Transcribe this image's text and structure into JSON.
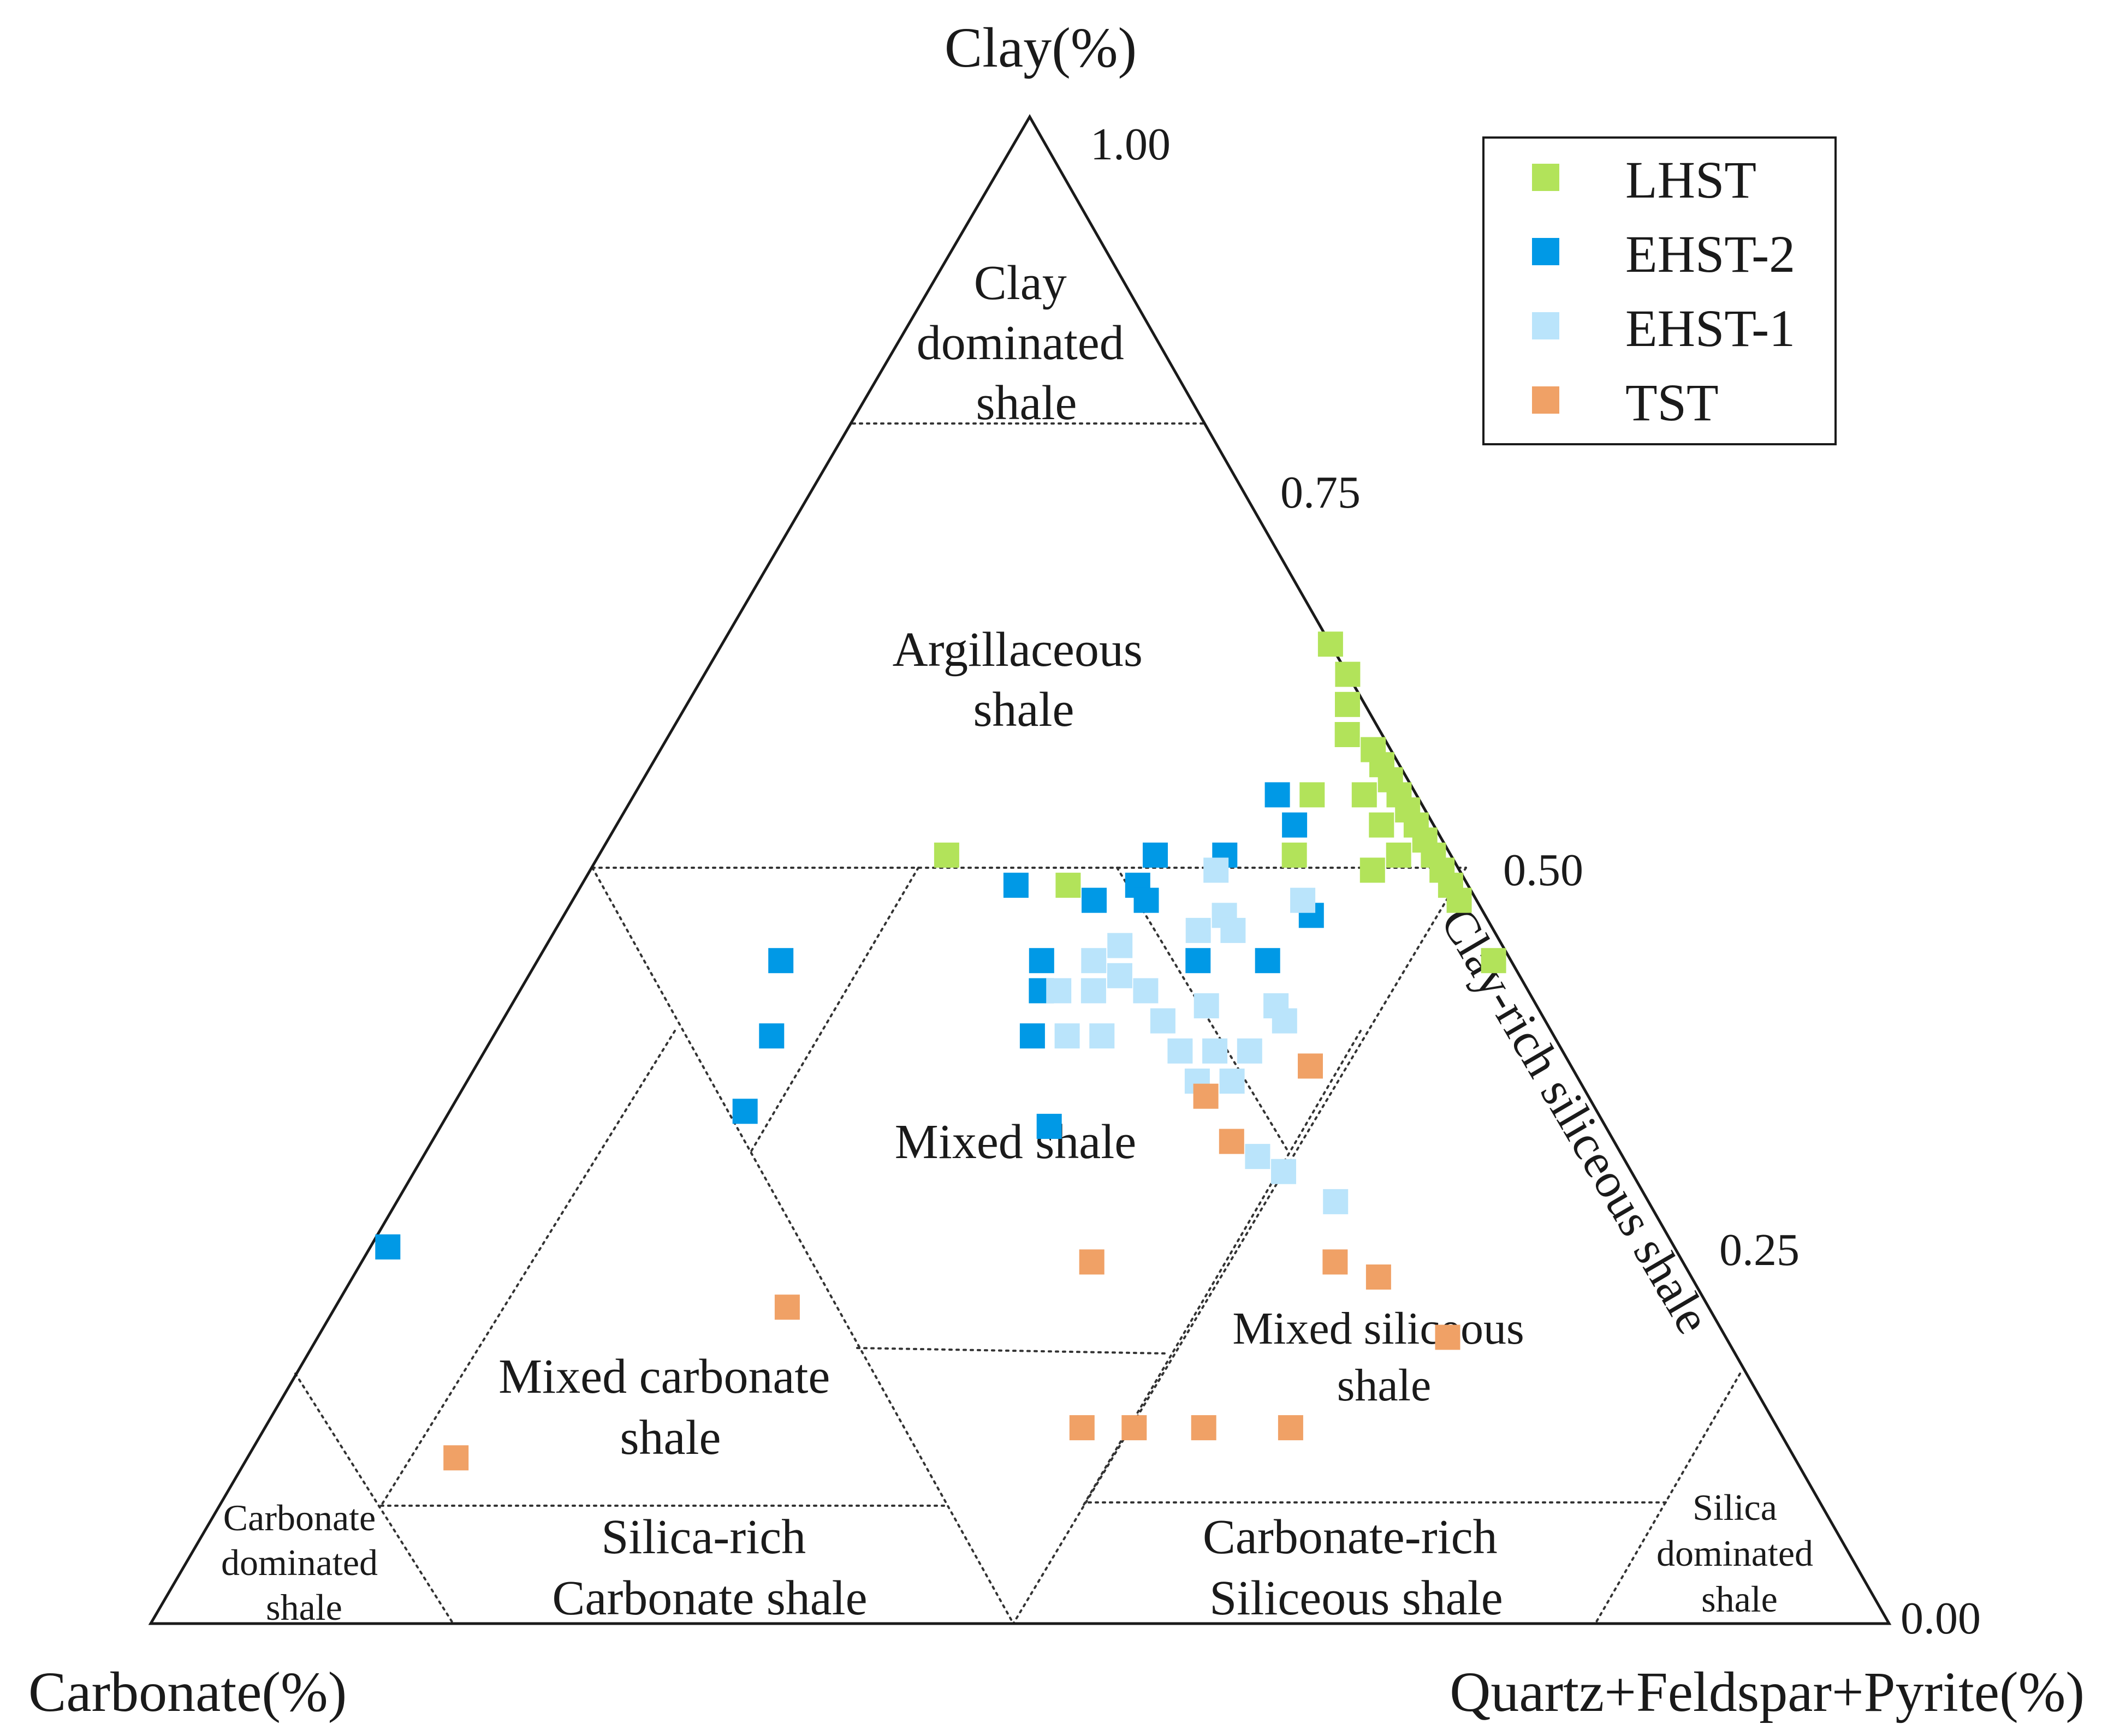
{
  "chart_data": {
    "type": "scatter",
    "subtype": "ternary",
    "axes": {
      "top": "Clay(%)",
      "left": "Carbonate(%)",
      "right": "Quartz+Feldspar+Pyrite(%)"
    },
    "ticks": [
      "1.00",
      "0.75",
      "0.50",
      "0.25",
      "0.00"
    ],
    "regions": [
      {
        "key": "clay_dom",
        "lines": [
          "Clay",
          "dominated",
          "shale"
        ]
      },
      {
        "key": "argillaceous",
        "lines": [
          "Argillaceous",
          "shale"
        ]
      },
      {
        "key": "mixed",
        "lines": [
          "Mixed shale"
        ]
      },
      {
        "key": "mixed_carbonate",
        "lines": [
          "Mixed carbonate",
          "shale"
        ]
      },
      {
        "key": "mixed_siliceous",
        "lines": [
          "Mixed siliceous",
          "shale"
        ]
      },
      {
        "key": "clay_rich_siliceous",
        "lines": [
          "Clay-rich siliceous shale"
        ]
      },
      {
        "key": "carbonate_dom",
        "lines": [
          "Carbonate",
          "dominated",
          "shale"
        ]
      },
      {
        "key": "silica_rich_carbonate",
        "lines": [
          "Silica-rich",
          "Carbonate shale"
        ]
      },
      {
        "key": "carbonate_rich_siliceous",
        "lines": [
          "Carbonate-rich",
          "Siliceous shale"
        ]
      },
      {
        "key": "silica_dom",
        "lines": [
          "Silica",
          "dominated",
          "shale"
        ]
      }
    ],
    "legend": {
      "position": "top-right"
    },
    "series": [
      {
        "name": "LHST",
        "color": "#b2e35a",
        "points": [
          {
            "clay": 0.65,
            "silica": 0.35
          },
          {
            "clay": 0.63,
            "silica": 0.37
          },
          {
            "clay": 0.61,
            "silica": 0.38
          },
          {
            "clay": 0.59,
            "silica": 0.39
          },
          {
            "clay": 0.58,
            "silica": 0.41
          },
          {
            "clay": 0.57,
            "silica": 0.42
          },
          {
            "clay": 0.56,
            "silica": 0.43
          },
          {
            "clay": 0.55,
            "silica": 0.42
          },
          {
            "clay": 0.55,
            "silica": 0.44
          },
          {
            "clay": 0.54,
            "silica": 0.45
          },
          {
            "clay": 0.53,
            "silica": 0.44
          },
          {
            "clay": 0.53,
            "silica": 0.46
          },
          {
            "clay": 0.52,
            "silica": 0.47
          },
          {
            "clay": 0.51,
            "silica": 0.46
          },
          {
            "clay": 0.51,
            "silica": 0.48
          },
          {
            "clay": 0.5,
            "silica": 0.45
          },
          {
            "clay": 0.5,
            "silica": 0.49
          },
          {
            "clay": 0.49,
            "silica": 0.5
          },
          {
            "clay": 0.48,
            "silica": 0.51
          },
          {
            "clay": 0.44,
            "silica": 0.55
          },
          {
            "clay": 0.55,
            "silica": 0.39
          },
          {
            "clay": 0.51,
            "silica": 0.4
          },
          {
            "clay": 0.51,
            "silica": 0.2
          },
          {
            "clay": 0.49,
            "silica": 0.28
          }
        ]
      },
      {
        "name": "EHST-2",
        "color": "#0099e6",
        "points": [
          {
            "clay": 0.55,
            "silica": 0.37
          },
          {
            "clay": 0.53,
            "silica": 0.39
          },
          {
            "clay": 0.51,
            "silica": 0.32
          },
          {
            "clay": 0.51,
            "silica": 0.36
          },
          {
            "clay": 0.49,
            "silica": 0.25
          },
          {
            "clay": 0.49,
            "silica": 0.32
          },
          {
            "clay": 0.48,
            "silica": 0.3
          },
          {
            "clay": 0.48,
            "silica": 0.33
          },
          {
            "clay": 0.47,
            "silica": 0.43
          },
          {
            "clay": 0.44,
            "silica": 0.14
          },
          {
            "clay": 0.44,
            "silica": 0.29
          },
          {
            "clay": 0.44,
            "silica": 0.38
          },
          {
            "clay": 0.44,
            "silica": 0.42
          },
          {
            "clay": 0.42,
            "silica": 0.3
          },
          {
            "clay": 0.39,
            "silica": 0.16
          },
          {
            "clay": 0.39,
            "silica": 0.31
          },
          {
            "clay": 0.34,
            "silica": 0.17
          },
          {
            "clay": 0.33,
            "silica": 0.35
          },
          {
            "clay": 0.25,
            "silica": 0.01
          }
        ]
      },
      {
        "name": "EHST-1",
        "color": "#bae4fb",
        "points": [
          {
            "clay": 0.5,
            "silica": 0.36
          },
          {
            "clay": 0.48,
            "silica": 0.42
          },
          {
            "clay": 0.47,
            "silica": 0.38
          },
          {
            "clay": 0.46,
            "silica": 0.37
          },
          {
            "clay": 0.46,
            "silica": 0.39
          },
          {
            "clay": 0.45,
            "silica": 0.33
          },
          {
            "clay": 0.44,
            "silica": 0.32
          },
          {
            "clay": 0.43,
            "silica": 0.34
          },
          {
            "clay": 0.42,
            "silica": 0.31
          },
          {
            "clay": 0.42,
            "silica": 0.33
          },
          {
            "clay": 0.42,
            "silica": 0.36
          },
          {
            "clay": 0.41,
            "silica": 0.4
          },
          {
            "clay": 0.41,
            "silica": 0.44
          },
          {
            "clay": 0.4,
            "silica": 0.38
          },
          {
            "clay": 0.4,
            "silica": 0.45
          },
          {
            "clay": 0.39,
            "silica": 0.33
          },
          {
            "clay": 0.39,
            "silica": 0.35
          },
          {
            "clay": 0.38,
            "silica": 0.4
          },
          {
            "clay": 0.38,
            "silica": 0.42
          },
          {
            "clay": 0.38,
            "silica": 0.44
          },
          {
            "clay": 0.36,
            "silica": 0.42
          },
          {
            "clay": 0.36,
            "silica": 0.44
          },
          {
            "clay": 0.31,
            "silica": 0.48
          },
          {
            "clay": 0.3,
            "silica": 0.5
          },
          {
            "clay": 0.28,
            "silica": 0.54
          }
        ]
      },
      {
        "name": "TST",
        "color": "#f0a166",
        "points": [
          {
            "clay": 0.37,
            "silica": 0.48
          },
          {
            "clay": 0.35,
            "silica": 0.43
          },
          {
            "clay": 0.32,
            "silica": 0.46
          },
          {
            "clay": 0.24,
            "silica": 0.42
          },
          {
            "clay": 0.24,
            "silica": 0.56
          },
          {
            "clay": 0.23,
            "silica": 0.59
          },
          {
            "clay": 0.21,
            "silica": 0.26
          },
          {
            "clay": 0.19,
            "silica": 0.65
          },
          {
            "clay": 0.13,
            "silica": 0.47
          },
          {
            "clay": 0.13,
            "silica": 0.5
          },
          {
            "clay": 0.13,
            "silica": 0.54
          },
          {
            "clay": 0.13,
            "silica": 0.59
          },
          {
            "clay": 0.11,
            "silica": 0.12
          }
        ]
      }
    ]
  }
}
